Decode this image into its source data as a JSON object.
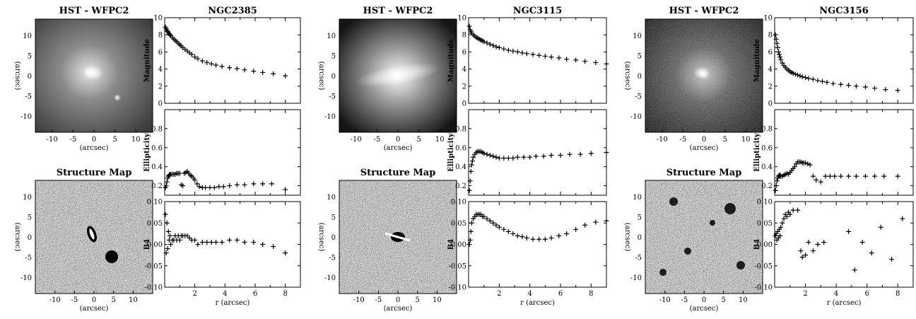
{
  "chart_data": [
    {
      "title": "NGC2385",
      "images": {
        "top_title": "HST - WFPC2",
        "bottom_title": "Structure Map",
        "axis_label": "(arcsec)",
        "ticks_top": [
          -10,
          -5,
          0,
          5,
          10
        ],
        "ticks_bottom": [
          -10,
          -5,
          0,
          5,
          10
        ]
      },
      "panels": [
        {
          "type": "scatter",
          "ylabel": "Magnitude",
          "xlim": [
            0,
            9
          ],
          "ylim": [
            0,
            10
          ],
          "yticks": [
            0,
            2,
            4,
            6,
            8,
            10
          ],
          "x": [
            0.05,
            0.1,
            0.15,
            0.2,
            0.25,
            0.3,
            0.35,
            0.4,
            0.5,
            0.6,
            0.7,
            0.8,
            0.9,
            1.0,
            1.1,
            1.2,
            1.35,
            1.5,
            1.65,
            1.8,
            2.0,
            2.2,
            2.5,
            2.8,
            3.1,
            3.4,
            3.8,
            4.3,
            4.8,
            5.3,
            5.9,
            6.5,
            7.2,
            8.0
          ],
          "y": [
            8.9,
            8.7,
            8.5,
            8.4,
            8.25,
            8.1,
            8.0,
            7.9,
            7.7,
            7.5,
            7.35,
            7.2,
            7.0,
            6.85,
            6.7,
            6.5,
            6.3,
            6.1,
            5.9,
            5.7,
            5.4,
            5.2,
            4.95,
            4.75,
            4.6,
            4.45,
            4.3,
            4.15,
            4.05,
            3.9,
            3.75,
            3.6,
            3.45,
            3.2
          ]
        },
        {
          "type": "scatter",
          "ylabel": "Ellipticity",
          "xlim": [
            0,
            9
          ],
          "ylim": [
            0.1,
            1.0
          ],
          "yticks": [
            0.2,
            0.4,
            0.6,
            0.8
          ],
          "x": [
            0.05,
            0.1,
            0.15,
            0.2,
            0.25,
            0.3,
            0.35,
            0.4,
            0.5,
            0.6,
            0.7,
            0.8,
            0.9,
            1.0,
            1.1,
            1.2,
            1.3,
            1.4,
            1.5,
            1.6,
            1.7,
            1.8,
            1.9,
            2.0,
            2.15,
            2.3,
            2.5,
            2.7,
            3.0,
            3.3,
            3.6,
            3.9,
            4.3,
            4.8,
            5.3,
            5.9,
            6.5,
            7.1,
            8.0
          ],
          "y": [
            0.18,
            0.2,
            0.24,
            0.28,
            0.3,
            0.31,
            0.32,
            0.32,
            0.32,
            0.32,
            0.32,
            0.33,
            0.33,
            0.33,
            0.21,
            0.2,
            0.33,
            0.34,
            0.35,
            0.33,
            0.31,
            0.3,
            0.28,
            0.26,
            0.22,
            0.19,
            0.18,
            0.18,
            0.18,
            0.18,
            0.19,
            0.19,
            0.2,
            0.21,
            0.21,
            0.22,
            0.22,
            0.22,
            0.16
          ]
        },
        {
          "type": "scatter",
          "ylabel": "B4",
          "xlabel": "r (arcsec)",
          "xlim": [
            0,
            9
          ],
          "ylim": [
            -0.1,
            0.1
          ],
          "yticks": [
            -0.1,
            -0.05,
            0.0,
            0.05,
            0.1
          ],
          "ytick_labels": [
            "-0.10",
            "-0.05",
            "0.00",
            "0.05",
            "0.10"
          ],
          "xticks": [
            2,
            4,
            6,
            8
          ],
          "x": [
            0.05,
            0.1,
            0.15,
            0.2,
            0.25,
            0.3,
            0.35,
            0.4,
            0.5,
            0.6,
            0.7,
            0.8,
            0.9,
            1.0,
            1.1,
            1.2,
            1.35,
            1.5,
            1.65,
            1.8,
            2.0,
            2.2,
            2.5,
            2.8,
            3.1,
            3.4,
            3.8,
            4.3,
            4.8,
            5.3,
            5.9,
            6.5,
            7.2,
            8.0
          ],
          "y": [
            0.07,
            -0.02,
            0.05,
            -0.01,
            0.03,
            0.01,
            0.02,
            0.0,
            0.01,
            0.01,
            0.02,
            0.01,
            0.02,
            0.01,
            0.02,
            0.02,
            0.02,
            0.02,
            0.015,
            0.01,
            0.01,
            0.0,
            0.005,
            0.005,
            0.005,
            0.005,
            0.005,
            0.01,
            0.01,
            0.005,
            0.005,
            0.0,
            -0.005,
            -0.02
          ]
        }
      ]
    },
    {
      "title": "NGC3115",
      "images": {
        "top_title": "HST - WFPC2",
        "bottom_title": "Structure Map",
        "axis_label": "(arcsec)",
        "ticks_top": [
          -10,
          -5,
          0,
          5,
          10
        ],
        "ticks_bottom": [
          -10,
          -5,
          0,
          5,
          10
        ]
      },
      "panels": [
        {
          "type": "scatter",
          "ylabel": "Magnitude",
          "xlim": [
            0,
            9
          ],
          "ylim": [
            0,
            10
          ],
          "yticks": [
            0,
            2,
            4,
            6,
            8,
            10
          ],
          "x": [
            0.05,
            0.1,
            0.15,
            0.2,
            0.3,
            0.4,
            0.5,
            0.6,
            0.7,
            0.8,
            0.9,
            1.0,
            1.2,
            1.4,
            1.6,
            1.8,
            2.0,
            2.3,
            2.6,
            2.9,
            3.2,
            3.5,
            3.8,
            4.2,
            4.6,
            5.0,
            5.4,
            5.9,
            6.4,
            7.0,
            7.6,
            8.3,
            9.0
          ],
          "y": [
            9.0,
            8.6,
            8.4,
            8.2,
            8.0,
            7.85,
            7.7,
            7.6,
            7.5,
            7.4,
            7.3,
            7.2,
            7.05,
            6.9,
            6.75,
            6.6,
            6.5,
            6.35,
            6.2,
            6.1,
            6.0,
            5.9,
            5.8,
            5.7,
            5.6,
            5.5,
            5.4,
            5.3,
            5.15,
            5.05,
            4.9,
            4.75,
            4.6
          ]
        },
        {
          "type": "scatter",
          "ylabel": "Ellipticity",
          "xlim": [
            0,
            9
          ],
          "ylim": [
            0.1,
            1.0
          ],
          "yticks": [
            0.2,
            0.4,
            0.6,
            0.8
          ],
          "x": [
            0.05,
            0.1,
            0.15,
            0.2,
            0.25,
            0.3,
            0.4,
            0.5,
            0.6,
            0.7,
            0.8,
            0.9,
            1.0,
            1.2,
            1.4,
            1.6,
            1.8,
            2.0,
            2.3,
            2.6,
            2.9,
            3.2,
            3.6,
            4.0,
            4.4,
            4.9,
            5.4,
            6.0,
            6.6,
            7.3,
            8.0,
            9.0
          ],
          "y": [
            0.15,
            0.25,
            0.35,
            0.42,
            0.46,
            0.5,
            0.53,
            0.55,
            0.56,
            0.56,
            0.56,
            0.55,
            0.54,
            0.53,
            0.52,
            0.51,
            0.5,
            0.49,
            0.49,
            0.49,
            0.49,
            0.5,
            0.5,
            0.5,
            0.51,
            0.51,
            0.52,
            0.52,
            0.53,
            0.53,
            0.54,
            0.55
          ]
        },
        {
          "type": "scatter",
          "ylabel": "B4",
          "xlabel": "r (arcsec)",
          "xlim": [
            0,
            9
          ],
          "ylim": [
            -0.1,
            0.1
          ],
          "yticks": [
            -0.1,
            -0.05,
            0.0,
            0.05,
            0.1
          ],
          "ytick_labels": [
            "-0.10",
            "-0.05",
            "0.00",
            "0.05",
            "0.10"
          ],
          "xticks": [
            2,
            4,
            6,
            8
          ],
          "x": [
            0.05,
            0.1,
            0.15,
            0.2,
            0.3,
            0.4,
            0.5,
            0.6,
            0.7,
            0.8,
            0.9,
            1.0,
            1.2,
            1.4,
            1.6,
            1.8,
            2.0,
            2.3,
            2.6,
            2.9,
            3.2,
            3.5,
            3.8,
            4.2,
            4.6,
            5.0,
            5.4,
            5.9,
            6.4,
            7.0,
            7.6,
            8.3,
            9.0
          ],
          "y": [
            0.0,
            0.01,
            0.03,
            0.05,
            0.06,
            0.065,
            0.07,
            0.07,
            0.07,
            0.07,
            0.065,
            0.065,
            0.06,
            0.055,
            0.05,
            0.045,
            0.04,
            0.035,
            0.03,
            0.025,
            0.02,
            0.018,
            0.015,
            0.012,
            0.012,
            0.012,
            0.015,
            0.02,
            0.025,
            0.035,
            0.045,
            0.052,
            0.055
          ]
        }
      ]
    },
    {
      "title": "NGC3156",
      "images": {
        "top_title": "HST - WFPC2",
        "bottom_title": "Structure Map",
        "axis_label": "(arcsec)",
        "ticks_top": [
          -10,
          -5,
          0,
          5,
          10
        ],
        "ticks_bottom": [
          -10,
          -5,
          0,
          5,
          10
        ]
      },
      "panels": [
        {
          "type": "scatter",
          "ylabel": "Magnitude",
          "xlim": [
            0,
            9
          ],
          "ylim": [
            0,
            10
          ],
          "yticks": [
            0,
            2,
            4,
            6,
            8,
            10
          ],
          "x": [
            0.05,
            0.1,
            0.15,
            0.2,
            0.25,
            0.3,
            0.35,
            0.4,
            0.5,
            0.6,
            0.7,
            0.8,
            0.9,
            1.0,
            1.1,
            1.2,
            1.35,
            1.5,
            1.65,
            1.8,
            2.0,
            2.2,
            2.5,
            2.8,
            3.1,
            3.4,
            3.8,
            4.3,
            4.8,
            5.3,
            5.9,
            6.5,
            7.2,
            8.0
          ],
          "y": [
            8.0,
            7.5,
            7.0,
            6.5,
            6.0,
            5.7,
            5.4,
            5.1,
            4.7,
            4.4,
            4.2,
            4.0,
            3.85,
            3.7,
            3.6,
            3.5,
            3.4,
            3.3,
            3.2,
            3.1,
            3.0,
            2.9,
            2.8,
            2.65,
            2.55,
            2.45,
            2.3,
            2.2,
            2.1,
            2.0,
            1.9,
            1.75,
            1.6,
            1.5
          ]
        },
        {
          "type": "scatter",
          "ylabel": "Ellipticity",
          "xlim": [
            0,
            9
          ],
          "ylim": [
            0.1,
            1.0
          ],
          "yticks": [
            0.2,
            0.4,
            0.6,
            0.8
          ],
          "x": [
            0.05,
            0.1,
            0.15,
            0.2,
            0.25,
            0.3,
            0.35,
            0.4,
            0.5,
            0.6,
            0.7,
            0.8,
            0.9,
            1.0,
            1.1,
            1.2,
            1.3,
            1.4,
            1.5,
            1.6,
            1.7,
            1.8,
            1.9,
            2.0,
            2.15,
            2.3,
            2.5,
            2.7,
            3.0,
            3.3,
            3.6,
            3.9,
            4.3,
            4.8,
            5.3,
            5.9,
            6.5,
            7.1,
            8.0
          ],
          "y": [
            0.15,
            0.2,
            0.25,
            0.28,
            0.3,
            0.31,
            0.31,
            0.3,
            0.3,
            0.31,
            0.32,
            0.33,
            0.32,
            0.34,
            0.36,
            0.38,
            0.4,
            0.43,
            0.45,
            0.45,
            0.45,
            0.44,
            0.44,
            0.44,
            0.43,
            0.42,
            0.3,
            0.26,
            0.24,
            0.3,
            0.3,
            0.3,
            0.3,
            0.3,
            0.3,
            0.3,
            0.3,
            0.3,
            0.3
          ]
        },
        {
          "type": "scatter",
          "ylabel": "B4",
          "xlabel": "r (arcsec)",
          "xlim": [
            0,
            9
          ],
          "ylim": [
            -0.1,
            0.1
          ],
          "yticks": [
            -0.1,
            -0.05,
            0.0,
            0.05,
            0.1
          ],
          "ytick_labels": [
            "-0.10",
            "-0.05",
            "0.00",
            "0.05",
            "0.10"
          ],
          "xticks": [
            2,
            4,
            6,
            8
          ],
          "x": [
            0.05,
            0.1,
            0.15,
            0.2,
            0.25,
            0.3,
            0.35,
            0.4,
            0.5,
            0.6,
            0.7,
            0.8,
            0.9,
            1.0,
            1.2,
            1.5,
            1.7,
            1.8,
            2.0,
            2.2,
            2.5,
            2.8,
            3.2,
            4.8,
            5.2,
            5.7,
            6.3,
            6.9,
            7.6,
            8.3
          ],
          "y": [
            0.02,
            0.025,
            0.01,
            0.03,
            0.015,
            0.035,
            0.02,
            0.04,
            0.05,
            0.06,
            0.07,
            0.065,
            0.075,
            0.07,
            0.08,
            0.08,
            -0.015,
            -0.03,
            -0.025,
            0.005,
            -0.015,
            0.0,
            0.005,
            0.03,
            -0.06,
            0.005,
            -0.02,
            0.04,
            -0.035,
            0.06
          ]
        }
      ]
    }
  ]
}
